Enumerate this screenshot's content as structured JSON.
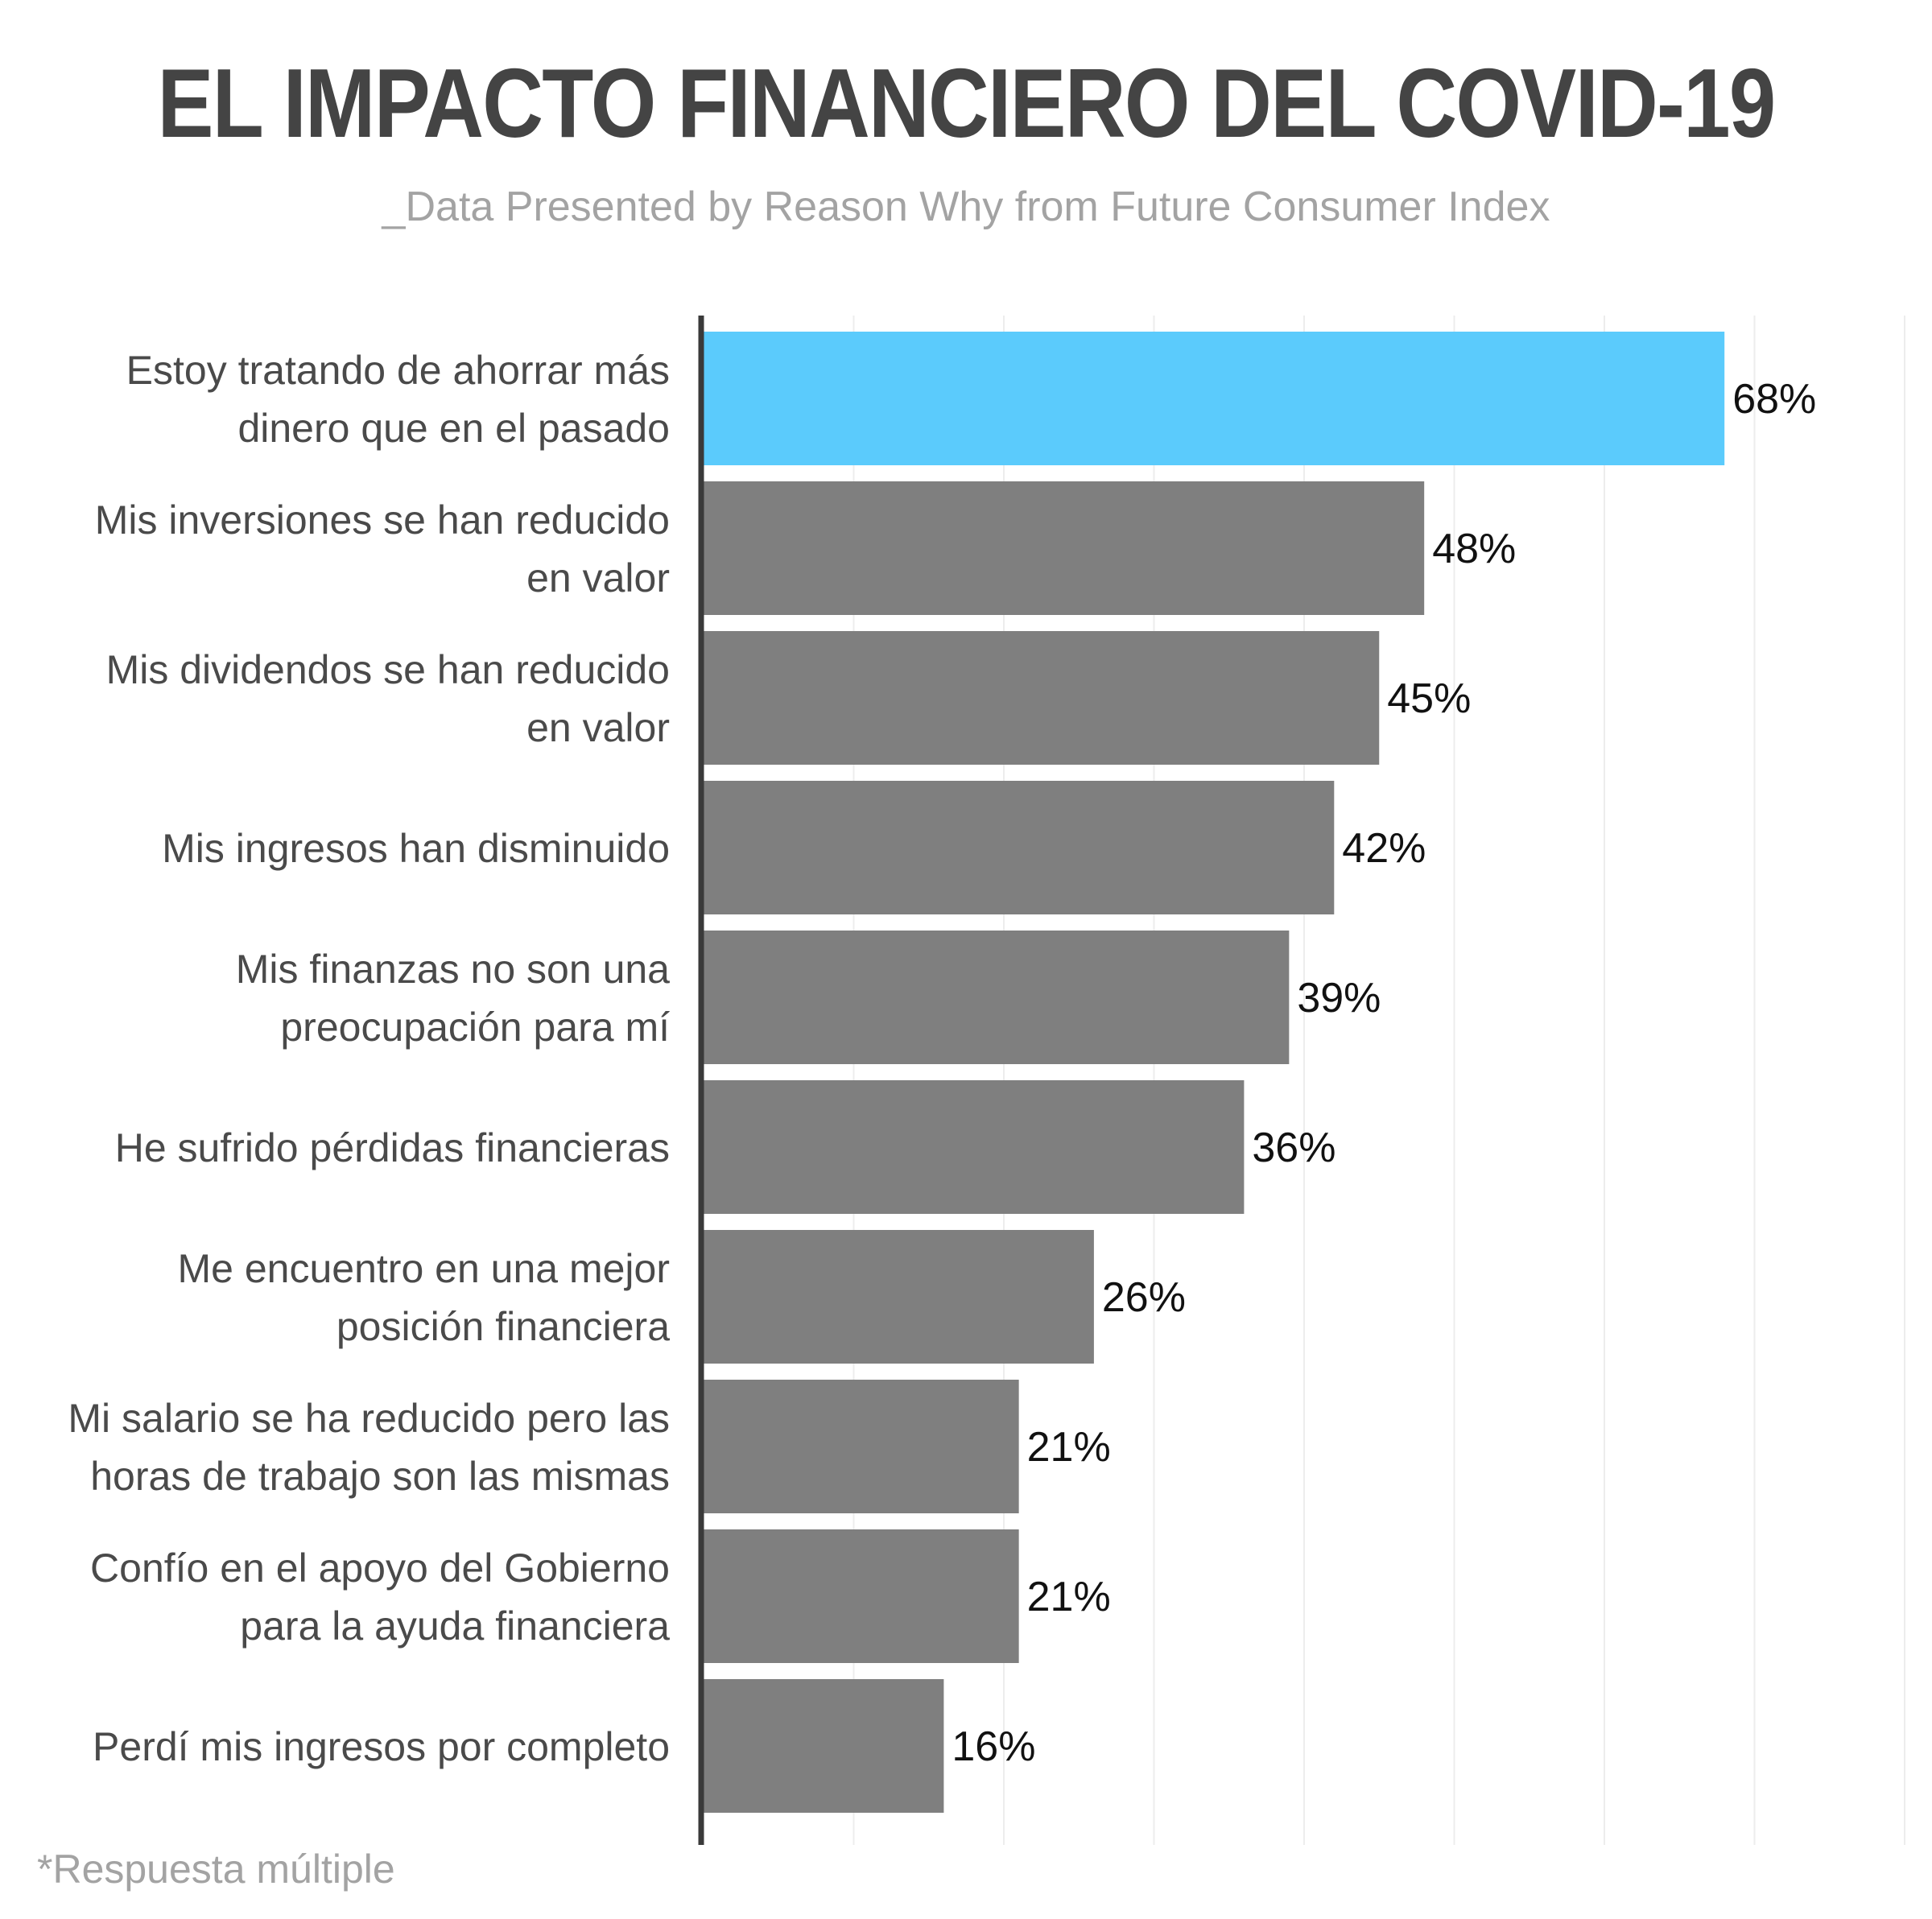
{
  "chart_data": {
    "type": "bar",
    "orientation": "horizontal",
    "title": "EL IMPACTO FINANCIERO DEL COVID-19",
    "subtitle": "_Data Presented by Reason Why from Future Consumer Index",
    "footnote": "*Respuesta múltiple",
    "categories": [
      [
        "Estoy tratando de ahorrar más",
        "dinero que en el pasado"
      ],
      [
        "Mis inversiones se han reducido",
        "en valor"
      ],
      [
        "Mis dividendos se han reducido",
        "en valor"
      ],
      [
        "Mis ingresos han disminuido"
      ],
      [
        "Mis finanzas no son una",
        "preocupación para mí"
      ],
      [
        "He sufrido pérdidas financieras"
      ],
      [
        "Me encuentro en una mejor",
        "posición financiera"
      ],
      [
        "Mi salario se ha reducido pero las",
        "horas de trabajo son las mismas"
      ],
      [
        "Confío en el apoyo del Gobierno",
        "para la ayuda financiera"
      ],
      [
        "Perdí mis ingresos por completo"
      ]
    ],
    "values": [
      68,
      48,
      45,
      42,
      39,
      36,
      26,
      21,
      21,
      16
    ],
    "value_labels": [
      "68%",
      "48%",
      "45%",
      "42%",
      "39%",
      "36%",
      "26%",
      "21%",
      "21%",
      "16%"
    ],
    "xlim": [
      0,
      80
    ],
    "grid": true,
    "legend": "none",
    "highlight_index": 0,
    "colors": {
      "highlight": "#5bcbfc",
      "default": "#7f7f7f",
      "axis": "#3a3a3a",
      "grid": "#ededed"
    }
  }
}
